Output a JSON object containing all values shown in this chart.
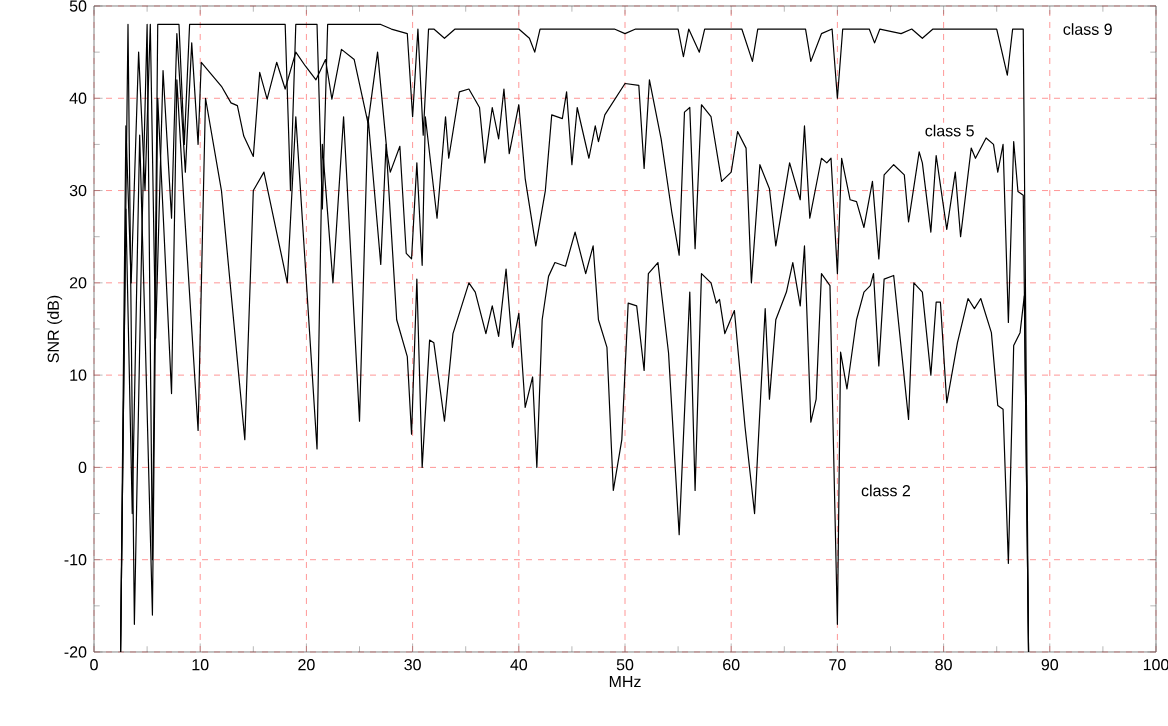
{
  "chart_data": {
    "type": "line",
    "xlabel": "MHz",
    "ylabel": "SNR (dB)",
    "xlim": [
      0,
      100
    ],
    "ylim": [
      -20,
      50
    ],
    "xticks": [
      0,
      10,
      20,
      30,
      40,
      50,
      60,
      70,
      80,
      90,
      100
    ],
    "yticks": [
      -20,
      -10,
      0,
      10,
      20,
      30,
      40,
      50
    ],
    "grid": true,
    "legend": false,
    "marker": "none",
    "line_style": "solid",
    "series": [
      {
        "name": "class 9",
        "color": "#000000",
        "x": [
          2.5,
          3.2,
          3.8,
          4.5,
          5,
          5.5,
          6,
          8,
          8.5,
          9,
          10,
          13,
          14,
          16,
          18,
          18.5,
          19,
          21,
          21.5,
          22,
          27,
          28,
          29.5,
          30,
          30.5,
          31,
          31.5,
          32,
          33,
          34,
          40,
          41,
          41.5,
          42,
          46,
          48,
          49,
          50,
          51,
          55,
          55.5,
          56,
          57,
          57.5,
          60,
          61,
          62,
          62.5,
          65,
          67,
          67.5,
          68.5,
          69.5,
          70,
          70.5,
          73,
          73.5,
          74,
          76,
          77,
          78,
          79,
          84,
          85,
          86,
          86.5,
          87.5,
          88
        ],
        "values": [
          -20,
          48,
          -17,
          25,
          48,
          -10,
          48,
          48,
          35,
          48,
          48,
          48,
          48,
          48,
          48,
          30,
          48,
          48,
          28,
          48,
          48,
          47.5,
          47,
          38,
          47.5,
          36,
          47.5,
          47.5,
          46.5,
          47.5,
          47.5,
          46.5,
          45,
          47.5,
          47.5,
          47.5,
          47.5,
          47,
          47.5,
          47.5,
          44.5,
          47.5,
          45,
          47.5,
          47.5,
          47.5,
          44,
          47.5,
          47.5,
          47.5,
          44,
          47,
          47.5,
          40,
          47.5,
          47.5,
          46,
          47.5,
          47,
          47.5,
          46.5,
          47.5,
          47.5,
          47.5,
          42.5,
          47.5,
          47.5,
          -20
        ]
      },
      {
        "name": "class 5",
        "color": "#000000",
        "x": [
          2.5,
          3,
          3.5,
          4.2,
          4.8,
          5.3,
          5.8,
          6.5,
          7.3,
          7.8,
          8.6,
          9.2,
          9.8,
          10.1,
          12,
          12.9,
          13.5,
          14.1,
          15,
          15.6,
          16.3,
          17.2,
          18,
          19,
          19.9,
          20.9,
          21.8,
          22.4,
          23.3,
          24.5,
          25.8,
          26.7,
          27.6,
          27.9,
          28.8,
          29.4,
          29.9,
          30.4,
          30.9,
          31.2,
          32.3,
          33.1,
          33.4,
          34.4,
          35.3,
          36.3,
          36.8,
          37.5,
          38.1,
          38.6,
          39.1,
          40,
          40.6,
          41.6,
          42.5,
          43.1,
          44.1,
          44.5,
          45,
          45.5,
          46.6,
          47.2,
          47.5,
          48.1,
          50,
          51.3,
          51.8,
          52.3,
          53.4,
          54.4,
          55.1,
          55.6,
          56.1,
          56.6,
          57.2,
          58.1,
          59.1,
          60,
          60.6,
          61.4,
          61.9,
          62.7,
          63.6,
          64.2,
          65.5,
          66.5,
          66.9,
          67.4,
          68.5,
          69,
          69.4,
          70,
          70.4,
          71.2,
          71.8,
          72.5,
          73.3,
          73.9,
          74.4,
          75.3,
          76.3,
          76.7,
          77.7,
          78,
          78.8,
          79.3,
          80.3,
          81.1,
          81.6,
          82.6,
          83,
          84,
          84.7,
          85.1,
          85.6,
          86.1,
          86.6,
          87,
          87.5,
          88
        ],
        "values": [
          -20,
          37,
          20,
          45,
          30,
          48,
          14,
          43,
          27,
          47,
          32,
          46,
          35,
          43.9,
          41.3,
          39.5,
          39.2,
          35.9,
          33.7,
          42.8,
          39.9,
          43.9,
          41,
          45,
          43.5,
          42,
          44.2,
          39.9,
          45.3,
          44.2,
          37.3,
          45,
          34,
          32,
          34.8,
          23.2,
          22.6,
          33,
          21.9,
          38,
          27,
          38,
          33.5,
          40.7,
          41,
          39,
          33,
          39,
          35.6,
          41,
          34,
          39.3,
          31.3,
          24,
          30,
          38.2,
          37.8,
          40.7,
          32.8,
          39,
          33.5,
          37,
          35.3,
          38.2,
          41.6,
          41.4,
          32.4,
          42,
          35.6,
          27.7,
          23,
          38.5,
          39,
          23.7,
          39.3,
          38,
          31,
          32,
          36.4,
          34.6,
          20,
          32.8,
          30.2,
          24,
          33,
          29,
          37,
          27,
          33.5,
          33,
          33.5,
          21,
          33.5,
          29,
          28.8,
          26,
          31,
          22.6,
          31.7,
          32.8,
          31.7,
          26.6,
          34.2,
          33,
          25.5,
          33.8,
          25.8,
          32,
          25,
          34.6,
          33.5,
          35.7,
          35,
          32,
          35,
          15.7,
          35.3,
          29.9,
          29.5,
          -20
        ]
      },
      {
        "name": "class 2",
        "color": "#000000",
        "x": [
          2.5,
          3,
          3.6,
          4.3,
          4.8,
          5.5,
          6,
          7.3,
          7.8,
          8.5,
          9.8,
          10.5,
          12,
          14.2,
          15,
          16,
          18.2,
          19,
          21,
          21.5,
          22.5,
          23.5,
          25,
          25.8,
          27,
          27.5,
          28.5,
          29.5,
          29.9,
          30.4,
          30.9,
          31.6,
          32,
          33,
          33.8,
          35.3,
          35.9,
          36.9,
          37.5,
          38.1,
          38.8,
          39.4,
          40,
          40.6,
          41.3,
          41.7,
          42.2,
          42.8,
          43.4,
          44.4,
          45.3,
          46.3,
          47,
          47.5,
          48.3,
          48.9,
          49.7,
          50.3,
          51.1,
          51.8,
          52.2,
          53.1,
          54.1,
          55.1,
          56.1,
          56.6,
          57.2,
          58.1,
          58.6,
          58.9,
          59.4,
          60.3,
          61.3,
          62.2,
          63.2,
          63.6,
          64.2,
          65.2,
          65.8,
          66.5,
          66.9,
          67.5,
          68,
          68.5,
          69.3,
          70,
          70.3,
          70.9,
          71.8,
          72.5,
          73.1,
          73.4,
          73.9,
          74.4,
          75.3,
          76.7,
          77.2,
          78,
          78.8,
          79.3,
          79.7,
          80.3,
          81.3,
          82.3,
          82.9,
          83.5,
          84.5,
          85.1,
          85.6,
          86.1,
          86.6,
          87.2,
          87.6,
          88
        ],
        "values": [
          -20,
          28,
          -5,
          36,
          15,
          -16,
          40,
          8,
          42,
          28,
          4,
          40,
          30,
          3,
          30,
          32,
          20,
          38,
          2,
          35,
          20,
          38,
          5,
          38,
          22,
          35,
          16,
          12,
          3.6,
          20.4,
          0,
          13.8,
          13.5,
          5,
          14.5,
          20,
          19,
          14.5,
          17.5,
          14.2,
          21.5,
          13,
          16.7,
          6.5,
          9.8,
          0,
          16,
          20.7,
          22.2,
          21.8,
          25.5,
          21,
          24,
          16,
          13,
          -2.5,
          3,
          17.8,
          17.5,
          10.5,
          21,
          22.2,
          12.4,
          -7.3,
          19,
          -2.5,
          21,
          20,
          17.8,
          18.2,
          14.5,
          17,
          4.4,
          -5,
          17.2,
          7.4,
          16,
          19,
          22.2,
          17.5,
          24,
          4.9,
          7.4,
          21,
          19.7,
          -17,
          12.5,
          8.5,
          16,
          19,
          19.7,
          21,
          11,
          20.4,
          20.8,
          5.2,
          20,
          19,
          10,
          17.9,
          17.9,
          7,
          13.5,
          18.3,
          17.2,
          18.3,
          14.6,
          6.7,
          6.3,
          -10.4,
          13.2,
          14.6,
          18.6,
          -20
        ]
      }
    ]
  }
}
